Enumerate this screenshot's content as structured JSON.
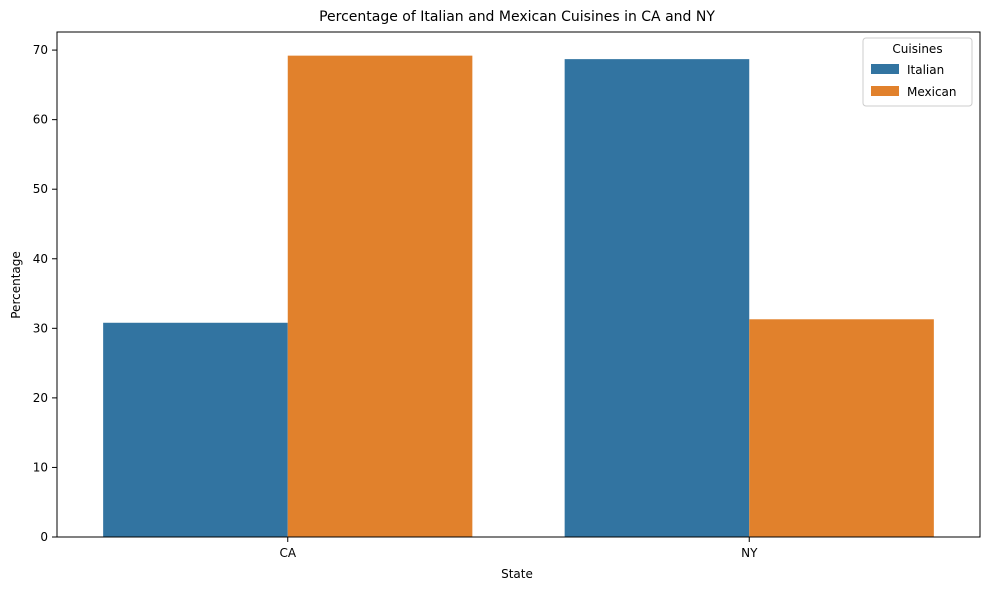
{
  "chart_data": {
    "type": "bar",
    "title": "Percentage of Italian and Mexican Cuisines in CA and NY",
    "xlabel": "State",
    "ylabel": "Percentage",
    "categories": [
      "CA",
      "NY"
    ],
    "series": [
      {
        "name": "Italian",
        "values": [
          30.8,
          68.7
        ],
        "color": "#3274a1"
      },
      {
        "name": "Mexican",
        "values": [
          69.2,
          31.3
        ],
        "color": "#e1812c"
      }
    ],
    "ylim": [
      0,
      72.6
    ],
    "yticks": [
      0,
      10,
      20,
      30,
      40,
      50,
      60,
      70
    ],
    "legend": {
      "title": "Cuisines",
      "position": "top-right"
    },
    "grid": false
  }
}
